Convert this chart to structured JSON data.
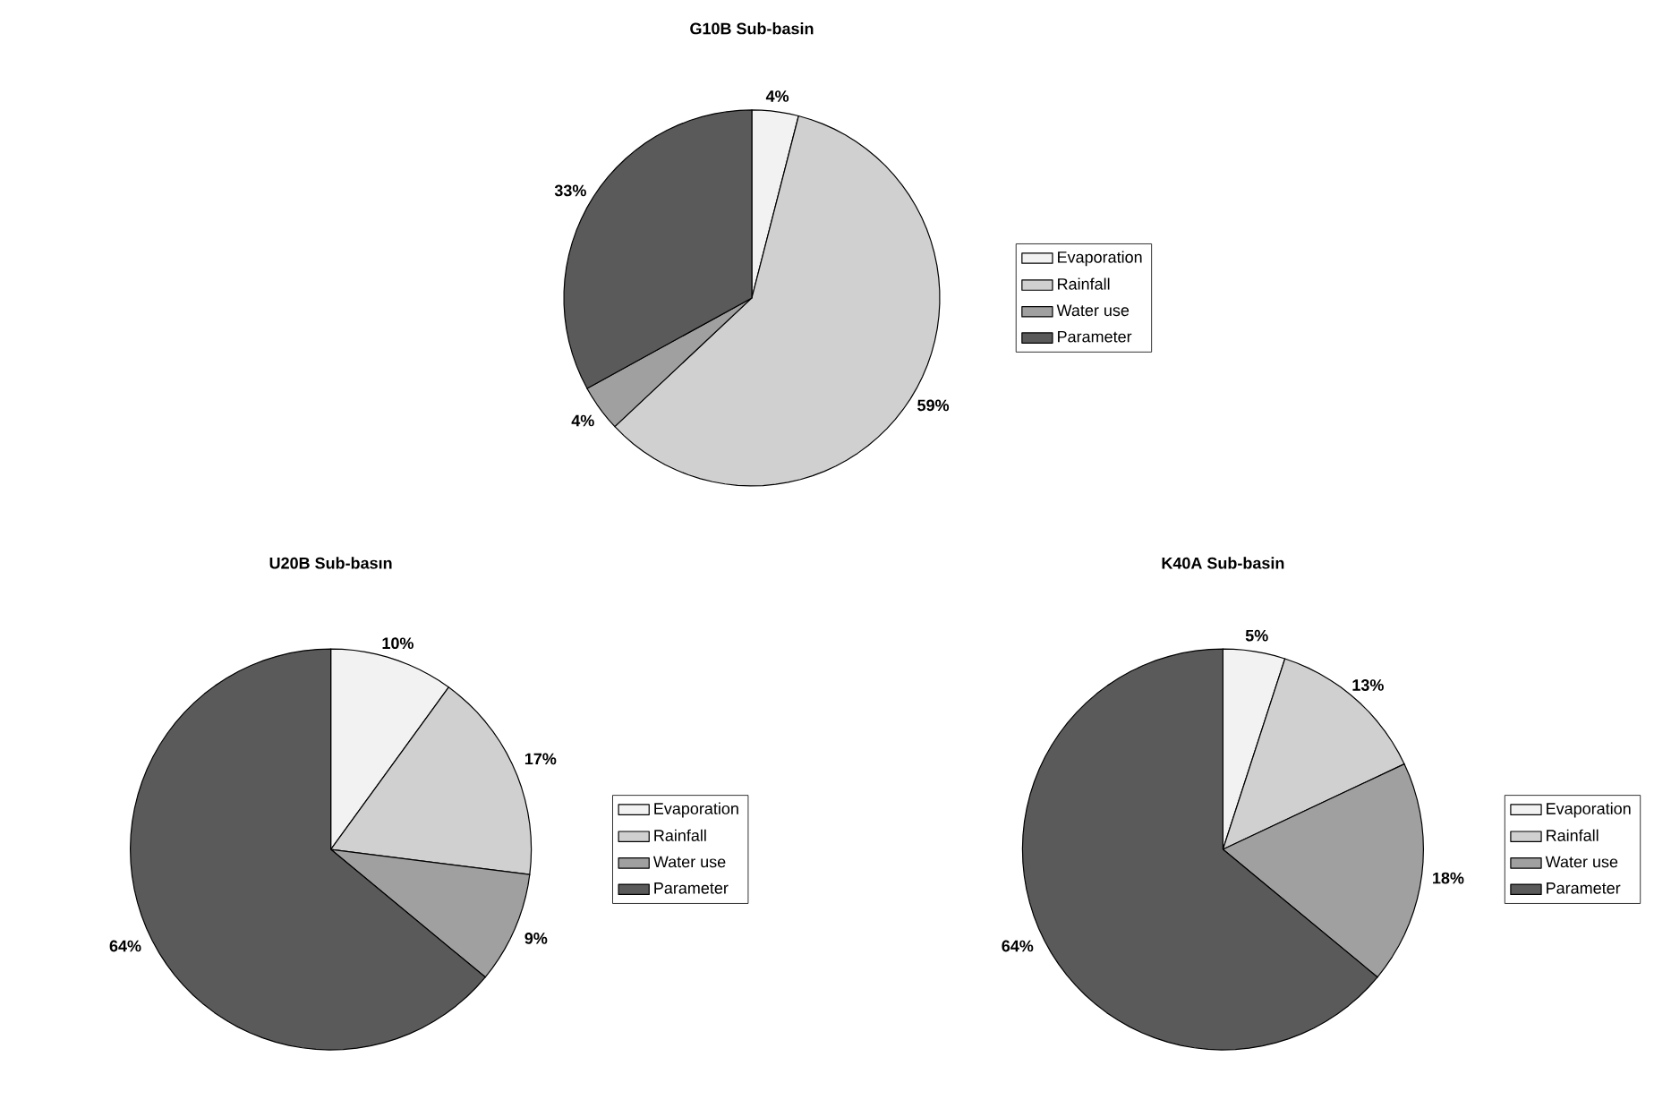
{
  "chart_data": [
    {
      "type": "pie",
      "title": "G10B Sub-basin",
      "categories": [
        "Evaporation",
        "Rainfall",
        "Water use",
        "Parameter"
      ],
      "values": [
        4,
        59,
        4,
        33
      ],
      "value_labels": [
        "4%",
        "59%",
        "4%",
        "33%"
      ],
      "colors": [
        "#f2f2f2",
        "#d0d0d0",
        "#a0a0a0",
        "#5a5a5a"
      ],
      "legend": "right"
    },
    {
      "type": "pie",
      "title": "U20B Sub-basın",
      "categories": [
        "Evaporation",
        "Rainfall",
        "Water use",
        "Parameter"
      ],
      "values": [
        10,
        17,
        9,
        64
      ],
      "value_labels": [
        "10%",
        "17%",
        "9%",
        "64%"
      ],
      "colors": [
        "#f2f2f2",
        "#d0d0d0",
        "#a0a0a0",
        "#5a5a5a"
      ],
      "legend": "right"
    },
    {
      "type": "pie",
      "title": "K40A Sub-basin",
      "categories": [
        "Evaporation",
        "Rainfall",
        "Water use",
        "Parameter"
      ],
      "values": [
        5,
        13,
        18,
        64
      ],
      "value_labels": [
        "5%",
        "13%",
        "18%",
        "64%"
      ],
      "colors": [
        "#f2f2f2",
        "#d0d0d0",
        "#a0a0a0",
        "#5a5a5a"
      ],
      "legend": "right"
    }
  ]
}
